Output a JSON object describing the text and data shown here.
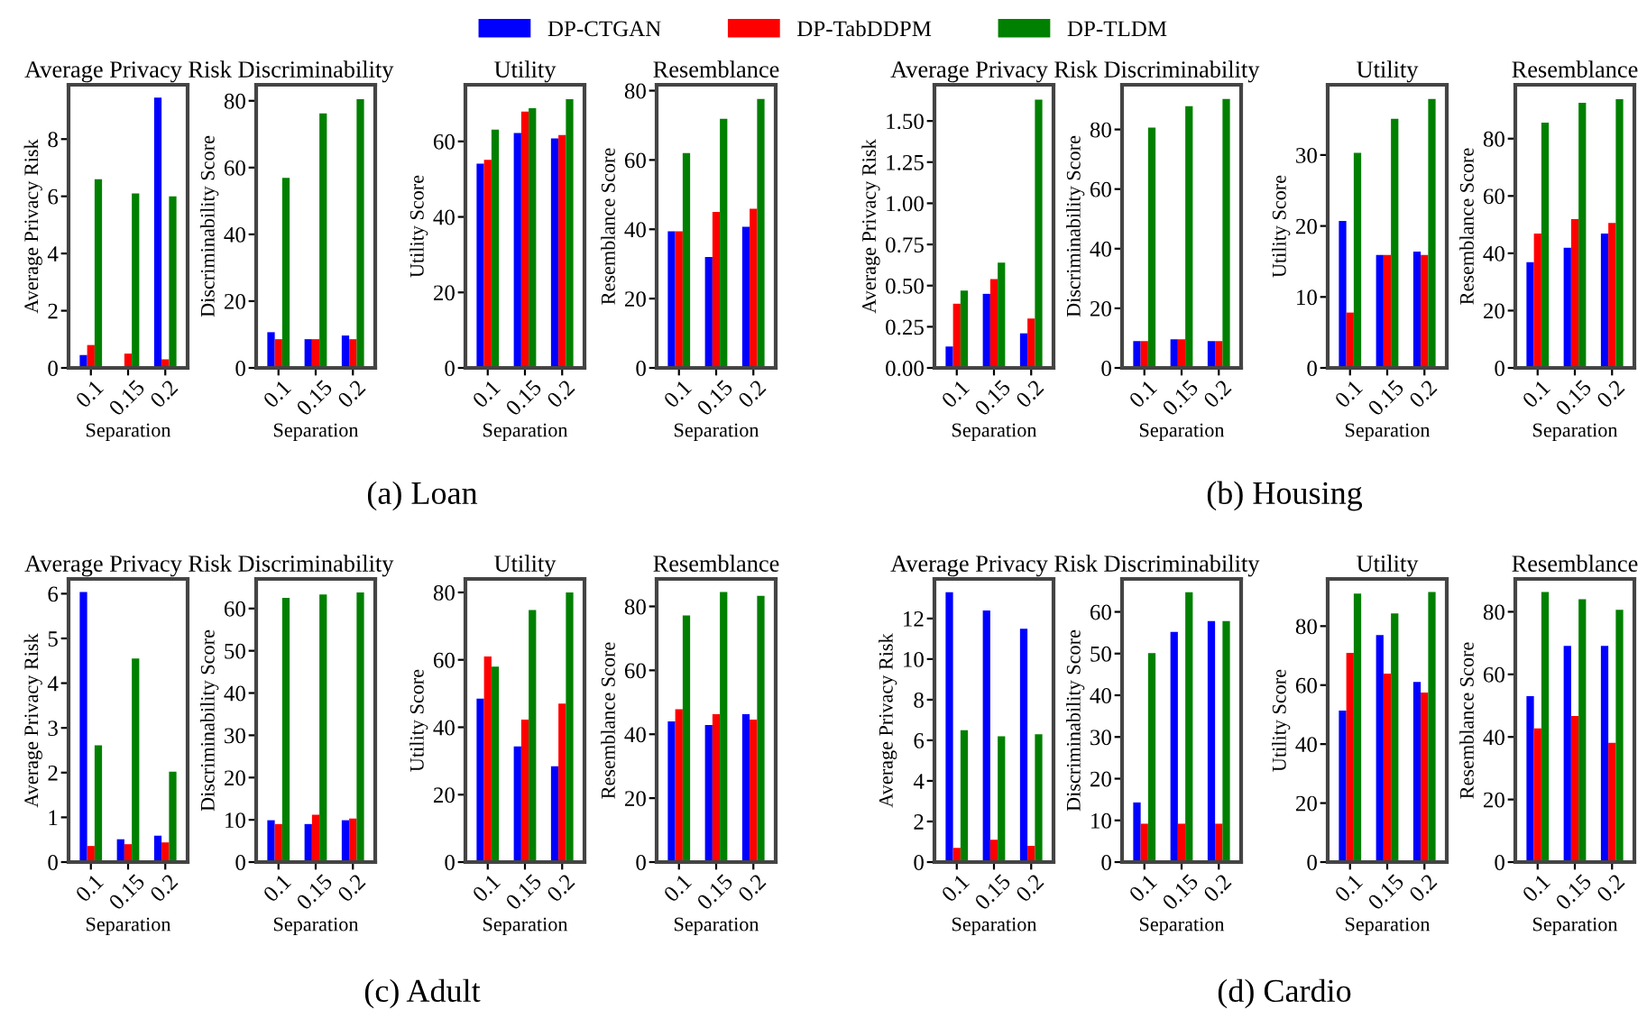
{
  "chart_data": [
    {
      "type": "bar",
      "title": "Average Privacy Risk",
      "xlabel": "Separation",
      "ylabel": "Average Privacy Risk",
      "categories": [
        "0.1",
        "0.15",
        "0.2"
      ],
      "ylim": [
        0,
        9.9
      ],
      "yticks": [
        0,
        2,
        4,
        6,
        8
      ],
      "legend": "top",
      "annotations": [
        "(a) Loan"
      ],
      "series": [
        {
          "name": "DP-CTGAN",
          "color": "#0000ff",
          "values": [
            0.45,
            0.02,
            9.45
          ]
        },
        {
          "name": "DP-TabDDPM",
          "color": "#ff0000",
          "values": [
            0.8,
            0.5,
            0.3
          ]
        },
        {
          "name": "DP-TLDM",
          "color": "#008000",
          "values": [
            6.6,
            6.1,
            6.0
          ]
        }
      ]
    },
    {
      "type": "bar",
      "title": "Discriminability",
      "xlabel": "Separation",
      "ylabel": "Discriminability Score",
      "categories": [
        "0.1",
        "0.15",
        "0.2"
      ],
      "ylim": [
        0,
        84.8
      ],
      "yticks": [
        0,
        20,
        40,
        60,
        80
      ],
      "series": [
        {
          "color": "#0000ff",
          "values": [
            10.7,
            8.6,
            9.7
          ]
        },
        {
          "color": "#ff0000",
          "values": [
            8.6,
            8.6,
            8.6
          ]
        },
        {
          "color": "#008000",
          "values": [
            56.9,
            76.2,
            80.5
          ]
        }
      ]
    },
    {
      "type": "bar",
      "title": "Utility",
      "xlabel": "Separation",
      "ylabel": "Utility Score",
      "categories": [
        "0.1",
        "0.15",
        "0.2"
      ],
      "ylim": [
        0,
        75
      ],
      "yticks": [
        0,
        20,
        40,
        60
      ],
      "series": [
        {
          "color": "#0000ff",
          "values": [
            54.1,
            62.2,
            60.8
          ]
        },
        {
          "color": "#ff0000",
          "values": [
            55.1,
            67.9,
            61.7
          ]
        },
        {
          "color": "#008000",
          "values": [
            63.1,
            68.8,
            71.2
          ]
        }
      ]
    },
    {
      "type": "bar",
      "title": "Resemblance",
      "xlabel": "Separation",
      "ylabel": "Resemblance Score",
      "categories": [
        "0.1",
        "0.15",
        "0.2"
      ],
      "ylim": [
        0,
        81.7
      ],
      "yticks": [
        0,
        20,
        40,
        60,
        80
      ],
      "series": [
        {
          "color": "#0000ff",
          "values": [
            39.4,
            32,
            40.7
          ]
        },
        {
          "color": "#ff0000",
          "values": [
            39.4,
            45,
            45.9
          ]
        },
        {
          "color": "#008000",
          "values": [
            62,
            71.9,
            77.6
          ]
        }
      ]
    },
    {
      "type": "bar",
      "title": "Average Privacy Risk",
      "xlabel": "Separation",
      "ylabel": "Average Privacy Risk",
      "categories": [
        "0.1",
        "0.15",
        "0.2"
      ],
      "ylim": [
        0,
        1.72
      ],
      "yticks": [
        {
          "value": 0,
          "label": "0.00"
        },
        {
          "value": 0.25,
          "label": "0.25"
        },
        {
          "value": 0.5,
          "label": "0.50"
        },
        {
          "value": 0.75,
          "label": "0.75"
        },
        {
          "value": 1,
          "label": "1.00"
        },
        {
          "value": 1.25,
          "label": "1.25"
        },
        {
          "value": 1.5,
          "label": "1.50"
        }
      ],
      "annotations": [
        "(b) Housing"
      ],
      "series": [
        {
          "color": "#0000ff",
          "values": [
            0.13,
            0.45,
            0.21
          ]
        },
        {
          "color": "#ff0000",
          "values": [
            0.39,
            0.54,
            0.3
          ]
        },
        {
          "color": "#008000",
          "values": [
            0.47,
            0.64,
            1.63
          ]
        }
      ]
    },
    {
      "type": "bar",
      "title": "Discriminability",
      "xlabel": "Separation",
      "ylabel": "Discriminability Score",
      "categories": [
        "0.1",
        "0.15",
        "0.2"
      ],
      "ylim": [
        0,
        95
      ],
      "yticks": [
        0,
        20,
        40,
        60,
        80
      ],
      "series": [
        {
          "color": "#0000ff",
          "values": [
            9.0,
            9.6,
            9.0
          ]
        },
        {
          "color": "#ff0000",
          "values": [
            9.0,
            9.6,
            9.0
          ]
        },
        {
          "color": "#008000",
          "values": [
            80.6,
            87.8,
            90.2
          ]
        }
      ]
    },
    {
      "type": "bar",
      "title": "Utility",
      "xlabel": "Separation",
      "ylabel": "Utility Score",
      "categories": [
        "0.1",
        "0.15",
        "0.2"
      ],
      "ylim": [
        0,
        39.9
      ],
      "yticks": [
        0,
        10,
        20,
        30
      ],
      "series": [
        {
          "color": "#0000ff",
          "values": [
            20.7,
            15.9,
            16.4
          ]
        },
        {
          "color": "#ff0000",
          "values": [
            7.8,
            15.9,
            15.9
          ]
        },
        {
          "color": "#008000",
          "values": [
            30.3,
            35.1,
            37.9
          ]
        }
      ]
    },
    {
      "type": "bar",
      "title": "Resemblance",
      "xlabel": "Separation",
      "ylabel": "Resemblance Score",
      "categories": [
        "0.1",
        "0.15",
        "0.2"
      ],
      "ylim": [
        0,
        98.8
      ],
      "yticks": [
        0,
        20,
        40,
        60,
        80
      ],
      "series": [
        {
          "color": "#0000ff",
          "values": [
            36.9,
            41.9,
            46.9
          ]
        },
        {
          "color": "#ff0000",
          "values": [
            46.9,
            51.9,
            50.6
          ]
        },
        {
          "color": "#008000",
          "values": [
            85.6,
            92.5,
            93.8
          ]
        }
      ]
    },
    {
      "type": "bar",
      "title": "Average Privacy Risk",
      "xlabel": "Separation",
      "ylabel": "Average Privacy Risk",
      "categories": [
        "0.1",
        "0.15",
        "0.2"
      ],
      "ylim": [
        0,
        6.33
      ],
      "yticks": [
        0,
        1,
        2,
        3,
        4,
        5,
        6
      ],
      "annotations": [
        "(c) Adult"
      ],
      "series": [
        {
          "color": "#0000ff",
          "values": [
            6.04,
            0.51,
            0.59
          ]
        },
        {
          "color": "#ff0000",
          "values": [
            0.36,
            0.4,
            0.44
          ]
        },
        {
          "color": "#008000",
          "values": [
            2.61,
            4.55,
            2.02
          ]
        }
      ]
    },
    {
      "type": "bar",
      "title": "Discriminability",
      "xlabel": "Separation",
      "ylabel": "Discriminability Score",
      "categories": [
        "0.1",
        "0.15",
        "0.2"
      ],
      "ylim": [
        0,
        67
      ],
      "yticks": [
        0,
        10,
        20,
        30,
        40,
        50,
        60
      ],
      "series": [
        {
          "color": "#0000ff",
          "values": [
            9.9,
            9.0,
            9.9
          ]
        },
        {
          "color": "#ff0000",
          "values": [
            9.0,
            11.2,
            10.3
          ]
        },
        {
          "color": "#008000",
          "values": [
            62.5,
            63.3,
            63.8
          ]
        }
      ]
    },
    {
      "type": "bar",
      "title": "Utility",
      "xlabel": "Separation",
      "ylabel": "Utility Score",
      "categories": [
        "0.1",
        "0.15",
        "0.2"
      ],
      "ylim": [
        0,
        84
      ],
      "yticks": [
        0,
        20,
        40,
        60,
        80
      ],
      "series": [
        {
          "color": "#0000ff",
          "values": [
            48.5,
            34.3,
            28.4
          ]
        },
        {
          "color": "#ff0000",
          "values": [
            61,
            42.3,
            47
          ]
        },
        {
          "color": "#008000",
          "values": [
            58,
            74.8,
            80
          ]
        }
      ]
    },
    {
      "type": "bar",
      "title": "Resemblance",
      "xlabel": "Separation",
      "ylabel": "Resemblance Score",
      "categories": [
        "0.1",
        "0.15",
        "0.2"
      ],
      "ylim": [
        0,
        88.6
      ],
      "yticks": [
        0,
        20,
        40,
        60,
        80
      ],
      "series": [
        {
          "color": "#0000ff",
          "values": [
            44,
            42.9,
            46.3
          ]
        },
        {
          "color": "#ff0000",
          "values": [
            47.8,
            46.3,
            44.6
          ]
        },
        {
          "color": "#008000",
          "values": [
            77.2,
            84.5,
            83.3
          ]
        }
      ]
    },
    {
      "type": "bar",
      "title": "Average Privacy Risk",
      "xlabel": "Separation",
      "ylabel": "Average Privacy Risk",
      "categories": [
        "0.1",
        "0.15",
        "0.2"
      ],
      "ylim": [
        0,
        13.95
      ],
      "yticks": [
        0,
        2,
        4,
        6,
        8,
        10,
        12
      ],
      "annotations": [
        "(d) Cardio"
      ],
      "series": [
        {
          "color": "#0000ff",
          "values": [
            13.3,
            12.4,
            11.5
          ]
        },
        {
          "color": "#ff0000",
          "values": [
            0.7,
            1.1,
            0.8
          ]
        },
        {
          "color": "#008000",
          "values": [
            6.5,
            6.2,
            6.3
          ]
        }
      ]
    },
    {
      "type": "bar",
      "title": "Discriminability",
      "xlabel": "Separation",
      "ylabel": "Discriminability Score",
      "categories": [
        "0.1",
        "0.15",
        "0.2"
      ],
      "ylim": [
        0,
        67.9
      ],
      "yticks": [
        0,
        10,
        20,
        30,
        40,
        50,
        60
      ],
      "series": [
        {
          "color": "#0000ff",
          "values": [
            14.3,
            55.2,
            57.8
          ]
        },
        {
          "color": "#ff0000",
          "values": [
            9.2,
            9.2,
            9.2
          ]
        },
        {
          "color": "#008000",
          "values": [
            50.1,
            64.7,
            57.8
          ]
        }
      ]
    },
    {
      "type": "bar",
      "title": "Utility",
      "xlabel": "Separation",
      "ylabel": "Utility Score",
      "categories": [
        "0.1",
        "0.15",
        "0.2"
      ],
      "ylim": [
        0,
        96
      ],
      "yticks": [
        0,
        20,
        40,
        60,
        80
      ],
      "series": [
        {
          "color": "#0000ff",
          "values": [
            51.4,
            77,
            61.1
          ]
        },
        {
          "color": "#ff0000",
          "values": [
            70.9,
            63.9,
            57.5
          ]
        },
        {
          "color": "#008000",
          "values": [
            91,
            84.3,
            91.6
          ]
        }
      ]
    },
    {
      "type": "bar",
      "title": "Resemblance",
      "xlabel": "Separation",
      "ylabel": "Resemblance Score",
      "categories": [
        "0.1",
        "0.15",
        "0.2"
      ],
      "ylim": [
        0,
        90.5
      ],
      "yticks": [
        0,
        20,
        40,
        60,
        80
      ],
      "series": [
        {
          "color": "#0000ff",
          "values": [
            53,
            69.1,
            69.1
          ]
        },
        {
          "color": "#ff0000",
          "values": [
            42.7,
            46.7,
            38.1
          ]
        },
        {
          "color": "#008000",
          "values": [
            86.3,
            84,
            80.6
          ]
        }
      ]
    }
  ]
}
